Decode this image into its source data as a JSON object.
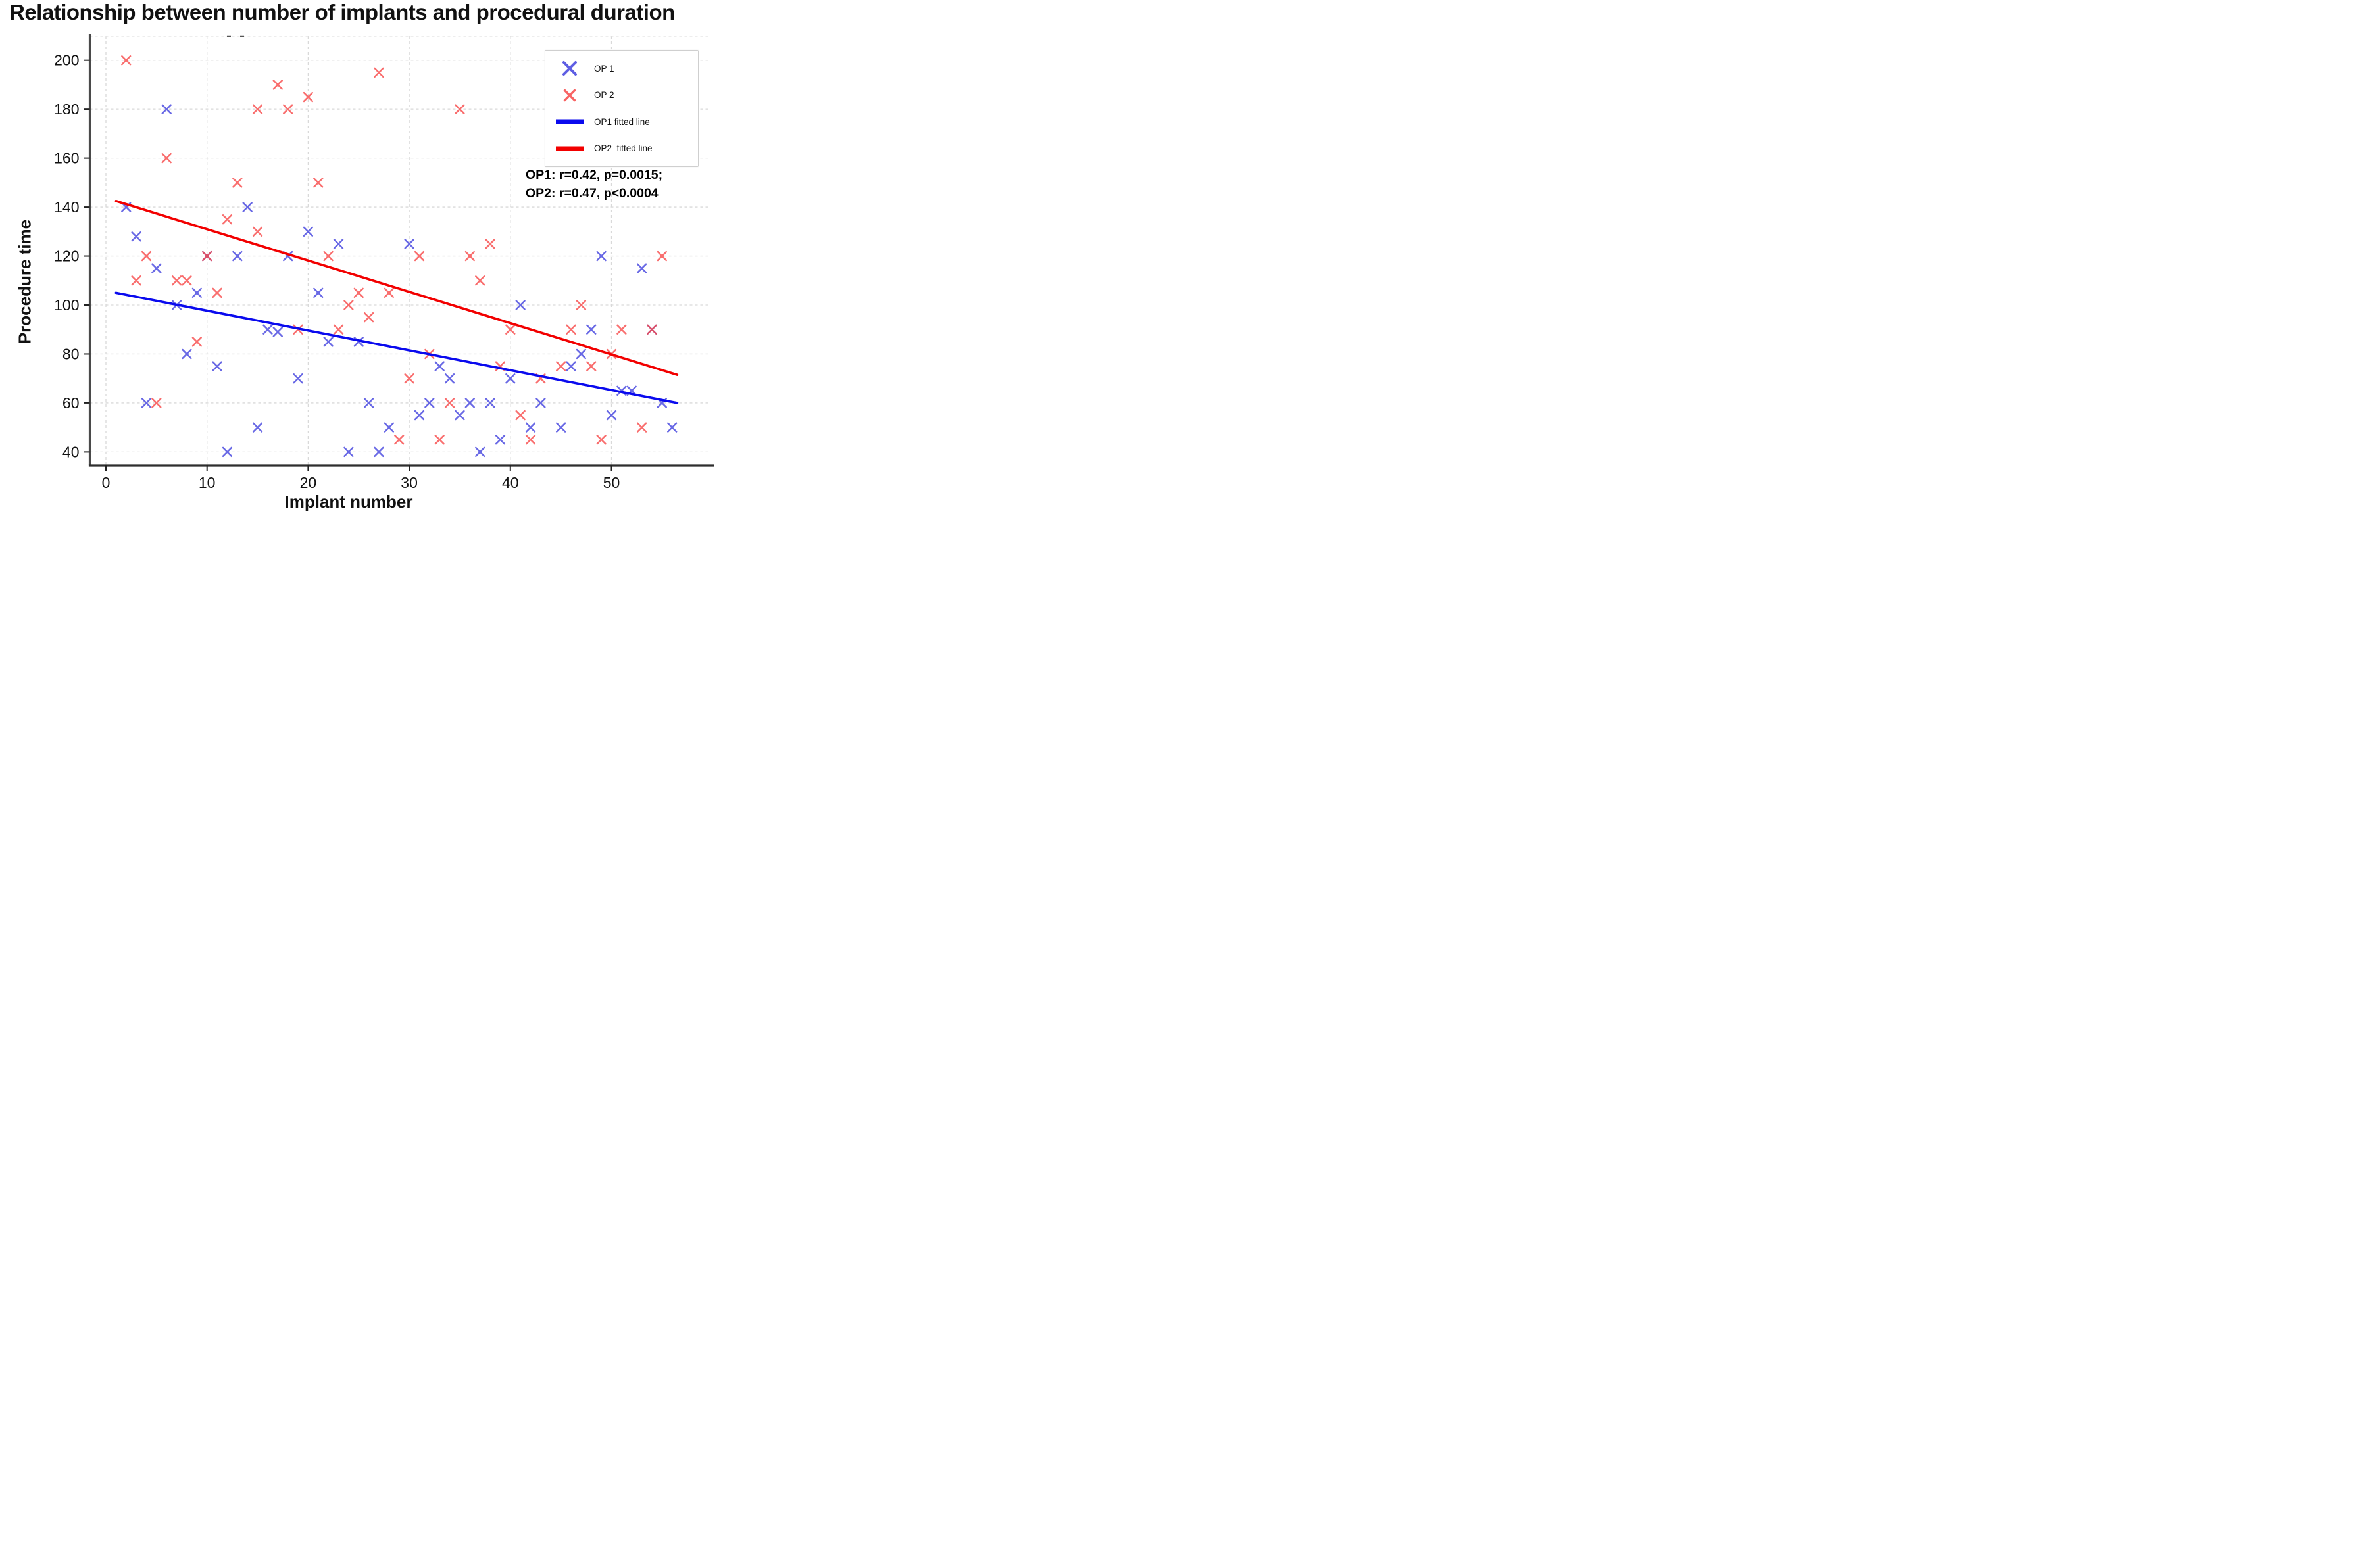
{
  "title": "Relationship between number of implants and procedural duration",
  "annotation": {
    "line1": "OP1: r=0.42, p=0.0015;",
    "line2": "OP2: r=0.47, p<0.0004"
  },
  "legend": {
    "items": [
      {
        "label": "OP 1",
        "type": "marker",
        "color": "#4343df"
      },
      {
        "label": "OP 2",
        "type": "marker",
        "color": "#f74a4a"
      },
      {
        "label": "OP1 fitted line",
        "type": "line",
        "color": "#0a0aee"
      },
      {
        "label": "OP2  fitted line",
        "type": "line",
        "color": "#f20000"
      }
    ]
  },
  "chart_data": {
    "type": "scatter",
    "title": "Relationship between number of implants and procedural duration",
    "xlabel": "Implant number",
    "ylabel": "Procedure time",
    "xlim": [
      -1.6,
      59.5
    ],
    "ylim": [
      34,
      210
    ],
    "x_ticks": [
      0,
      10,
      20,
      30,
      40,
      50
    ],
    "y_ticks": [
      200,
      180,
      160,
      140,
      120,
      100,
      80,
      60,
      40
    ],
    "grid": true,
    "legend_position": "upper right",
    "series": [
      {
        "name": "OP 1",
        "marker": "x",
        "color": "#4343df",
        "points": [
          [
            2,
            140
          ],
          [
            14,
            140
          ],
          [
            3,
            128
          ],
          [
            20,
            130
          ],
          [
            6,
            180
          ],
          [
            23,
            125
          ],
          [
            30,
            125
          ],
          [
            10,
            120
          ],
          [
            13,
            120
          ],
          [
            18,
            120
          ],
          [
            49,
            120
          ],
          [
            5,
            115
          ],
          [
            53,
            115
          ],
          [
            9,
            105
          ],
          [
            21,
            105
          ],
          [
            7,
            100
          ],
          [
            41,
            100
          ],
          [
            16,
            90
          ],
          [
            17,
            89
          ],
          [
            48,
            90
          ],
          [
            54,
            90
          ],
          [
            22,
            85
          ],
          [
            25,
            85
          ],
          [
            8,
            80
          ],
          [
            47,
            80
          ],
          [
            11,
            75
          ],
          [
            33,
            75
          ],
          [
            46,
            75
          ],
          [
            19,
            70
          ],
          [
            34,
            70
          ],
          [
            40,
            70
          ],
          [
            51,
            65
          ],
          [
            52,
            65
          ],
          [
            4,
            60
          ],
          [
            26,
            60
          ],
          [
            32,
            60
          ],
          [
            36,
            60
          ],
          [
            38,
            60
          ],
          [
            43,
            60
          ],
          [
            55,
            60
          ],
          [
            31,
            55
          ],
          [
            35,
            55
          ],
          [
            50,
            55
          ],
          [
            15,
            50
          ],
          [
            28,
            50
          ],
          [
            42,
            50
          ],
          [
            45,
            50
          ],
          [
            56,
            50
          ],
          [
            39,
            45
          ],
          [
            12,
            40
          ],
          [
            24,
            40
          ],
          [
            27,
            40
          ],
          [
            37,
            40
          ]
        ]
      },
      {
        "name": "OP 2",
        "marker": "x",
        "color": "#f74a4a",
        "points": [
          [
            2,
            200
          ],
          [
            27,
            195
          ],
          [
            17,
            190
          ],
          [
            20,
            185
          ],
          [
            15,
            180
          ],
          [
            18,
            180
          ],
          [
            35,
            180
          ],
          [
            6,
            160
          ],
          [
            13,
            150
          ],
          [
            21,
            150
          ],
          [
            12,
            135
          ],
          [
            15,
            130
          ],
          [
            38,
            125
          ],
          [
            4,
            120
          ],
          [
            10,
            120
          ],
          [
            22,
            120
          ],
          [
            31,
            120
          ],
          [
            36,
            120
          ],
          [
            55,
            120
          ],
          [
            3,
            110
          ],
          [
            7,
            110
          ],
          [
            8,
            110
          ],
          [
            37,
            110
          ],
          [
            11,
            105
          ],
          [
            25,
            105
          ],
          [
            28,
            105
          ],
          [
            24,
            100
          ],
          [
            47,
            100
          ],
          [
            26,
            95
          ],
          [
            19,
            90
          ],
          [
            23,
            90
          ],
          [
            40,
            90
          ],
          [
            46,
            90
          ],
          [
            51,
            90
          ],
          [
            54,
            90
          ],
          [
            9,
            85
          ],
          [
            32,
            80
          ],
          [
            50,
            80
          ],
          [
            39,
            75
          ],
          [
            45,
            75
          ],
          [
            48,
            75
          ],
          [
            30,
            70
          ],
          [
            43,
            70
          ],
          [
            5,
            60
          ],
          [
            34,
            60
          ],
          [
            41,
            55
          ],
          [
            53,
            50
          ],
          [
            29,
            45
          ],
          [
            33,
            45
          ],
          [
            42,
            45
          ],
          [
            49,
            45
          ]
        ]
      }
    ],
    "fitted_lines": [
      {
        "name": "OP1 fitted line",
        "color": "#0a0aee",
        "from": [
          1,
          105
        ],
        "to": [
          56.5,
          60
        ]
      },
      {
        "name": "OP2 fitted line",
        "color": "#f20000",
        "from": [
          1,
          142.5
        ],
        "to": [
          56.5,
          71.5
        ]
      }
    ]
  },
  "colors": {
    "op1_marker": "#4343df",
    "op2_marker": "#f74a4a",
    "op1_line": "#0a0aee",
    "op2_line": "#f20000",
    "grid": "#d9d9d9",
    "spine": "#4a4a4a",
    "tick_label": "#111111"
  }
}
